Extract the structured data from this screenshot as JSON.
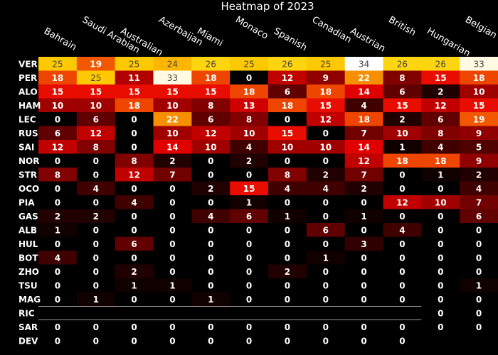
{
  "chart_data": {
    "type": "heatmap",
    "title": "Heatmap of 2023",
    "x": [
      "Bahrain",
      "Saudi Arabian",
      "Australian",
      "Azerbaijan",
      "Miami",
      "Monaco",
      "Spanish",
      "Canadian",
      "Austrian",
      "British",
      "Hungarian",
      "Belgian"
    ],
    "y": [
      "VER",
      "PER",
      "ALO",
      "HAM",
      "LEC",
      "RUS",
      "SAI",
      "NOR",
      "STR",
      "OCO",
      "PIA",
      "GAS",
      "ALB",
      "HUL",
      "BOT",
      "ZHO",
      "TSU",
      "MAG",
      "RIC",
      "SAR",
      "DEV"
    ],
    "z": [
      [
        25,
        19,
        25,
        24,
        26,
        25,
        26,
        25,
        34,
        26,
        26,
        33
      ],
      [
        18,
        25,
        11,
        33,
        18,
        0,
        12,
        9,
        22,
        8,
        15,
        18
      ],
      [
        15,
        15,
        15,
        15,
        15,
        18,
        6,
        18,
        14,
        6,
        2,
        10
      ],
      [
        10,
        10,
        18,
        10,
        8,
        13,
        18,
        15,
        4,
        15,
        12,
        15
      ],
      [
        0,
        6,
        0,
        22,
        6,
        8,
        0,
        12,
        18,
        2,
        6,
        19
      ],
      [
        6,
        12,
        0,
        10,
        12,
        10,
        15,
        0,
        7,
        10,
        8,
        9
      ],
      [
        12,
        8,
        0,
        14,
        10,
        4,
        10,
        10,
        14,
        1,
        4,
        5
      ],
      [
        0,
        0,
        8,
        2,
        0,
        2,
        0,
        0,
        12,
        18,
        18,
        9
      ],
      [
        8,
        0,
        12,
        7,
        0,
        0,
        8,
        2,
        7,
        0,
        1,
        2
      ],
      [
        0,
        4,
        0,
        0,
        2,
        15,
        4,
        4,
        2,
        0,
        0,
        4
      ],
      [
        0,
        0,
        4,
        0,
        0,
        1,
        0,
        0,
        0,
        12,
        10,
        7
      ],
      [
        2,
        2,
        0,
        0,
        4,
        6,
        1,
        0,
        1,
        0,
        0,
        6
      ],
      [
        1,
        0,
        0,
        0,
        0,
        0,
        0,
        6,
        0,
        4,
        0,
        0
      ],
      [
        0,
        0,
        6,
        0,
        0,
        0,
        0,
        0,
        3,
        0,
        0,
        0
      ],
      [
        4,
        0,
        0,
        0,
        0,
        0,
        0,
        1,
        0,
        0,
        0,
        0
      ],
      [
        0,
        0,
        2,
        0,
        0,
        0,
        2,
        0,
        0,
        0,
        0,
        0
      ],
      [
        0,
        0,
        1,
        1,
        0,
        0,
        0,
        0,
        0,
        0,
        0,
        1
      ],
      [
        0,
        1,
        0,
        0,
        1,
        0,
        0,
        0,
        0,
        0,
        0,
        0
      ],
      [
        null,
        null,
        null,
        null,
        null,
        null,
        null,
        null,
        null,
        null,
        0,
        0
      ],
      [
        0,
        0,
        0,
        0,
        0,
        0,
        0,
        0,
        0,
        0,
        0,
        0
      ],
      [
        0,
        0,
        0,
        0,
        0,
        0,
        0,
        0,
        0,
        0,
        null,
        null
      ]
    ],
    "zmax": 34,
    "colorscale": [
      "#000000",
      "#e60000",
      "#ffd200",
      "#ffffff"
    ],
    "legend": "none",
    "grid": false
  }
}
